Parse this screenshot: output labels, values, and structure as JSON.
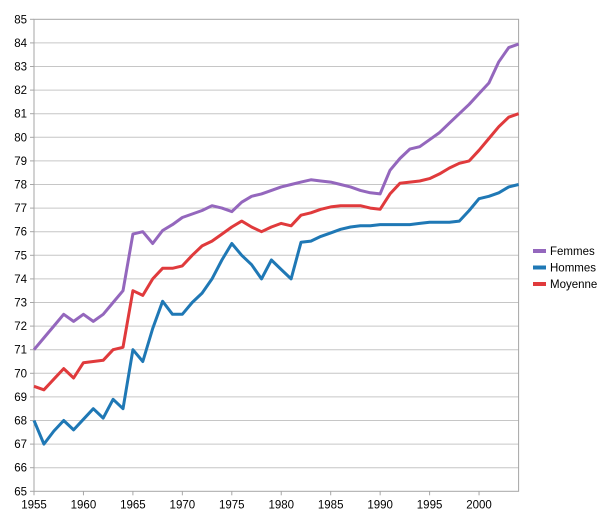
{
  "chart_data": {
    "type": "line",
    "title": "",
    "xlabel": "",
    "ylabel": "",
    "ylim": [
      65,
      85
    ],
    "ytick_step": 1,
    "y_ticks": [
      85,
      84,
      83,
      82,
      81,
      80,
      79,
      78,
      77,
      76,
      75,
      74,
      73,
      72,
      71,
      70,
      69,
      68,
      67,
      66,
      65
    ],
    "x_ticks": [
      1955,
      1960,
      1965,
      1970,
      1975,
      1980,
      1985,
      1990,
      1995,
      2000
    ],
    "x_start": 1955,
    "x_end": 2004,
    "grid": "horizontal",
    "legend_position": "right",
    "x": [
      1955,
      1956,
      1957,
      1958,
      1959,
      1960,
      1961,
      1962,
      1963,
      1964,
      1965,
      1966,
      1967,
      1968,
      1969,
      1970,
      1971,
      1972,
      1973,
      1974,
      1975,
      1976,
      1977,
      1978,
      1979,
      1980,
      1981,
      1982,
      1983,
      1984,
      1985,
      1986,
      1987,
      1988,
      1989,
      1990,
      1991,
      1992,
      1993,
      1994,
      1995,
      1996,
      1997,
      1998,
      1999,
      2000,
      2001,
      2002,
      2003,
      2004
    ],
    "series": [
      {
        "name": "Femmes",
        "color": "#9467BD",
        "values": [
          71.0,
          71.5,
          72.0,
          72.5,
          72.2,
          72.5,
          72.2,
          72.5,
          73.0,
          73.5,
          75.9,
          76.0,
          75.5,
          76.05,
          76.3,
          76.6,
          76.75,
          76.9,
          77.1,
          77.0,
          76.85,
          77.25,
          77.5,
          77.6,
          77.75,
          77.9,
          78.0,
          78.1,
          78.2,
          78.15,
          78.1,
          78.0,
          77.9,
          77.75,
          77.65,
          77.6,
          78.6,
          79.1,
          79.5,
          79.6,
          79.9,
          80.2,
          80.6,
          81.0,
          81.4,
          81.85,
          82.3,
          83.2,
          83.8,
          83.95
        ]
      },
      {
        "name": "Hommes",
        "color": "#1F78B5",
        "values": [
          68.0,
          67.0,
          67.55,
          68.0,
          67.6,
          68.05,
          68.5,
          68.1,
          68.9,
          68.5,
          71.0,
          70.5,
          71.9,
          73.05,
          72.5,
          72.5,
          73.0,
          73.4,
          74.0,
          74.8,
          75.5,
          75.0,
          74.6,
          74.0,
          74.8,
          74.4,
          74.0,
          75.55,
          75.6,
          75.8,
          75.95,
          76.1,
          76.2,
          76.25,
          76.25,
          76.3,
          76.3,
          76.3,
          76.3,
          76.35,
          76.4,
          76.4,
          76.4,
          76.45,
          76.9,
          77.4,
          77.5,
          77.65,
          77.9,
          78.0
        ]
      },
      {
        "name": "Moyenne",
        "color": "#E03A3C",
        "values": [
          69.45,
          69.3,
          69.75,
          70.2,
          69.8,
          70.45,
          70.5,
          70.55,
          71.0,
          71.1,
          73.5,
          73.3,
          74.0,
          74.45,
          74.45,
          74.55,
          75.0,
          75.4,
          75.6,
          75.9,
          76.2,
          76.45,
          76.2,
          76.0,
          76.2,
          76.35,
          76.25,
          76.7,
          76.8,
          76.95,
          77.05,
          77.1,
          77.1,
          77.1,
          77.0,
          76.95,
          77.6,
          78.05,
          78.1,
          78.15,
          78.25,
          78.45,
          78.7,
          78.9,
          79.0,
          79.45,
          79.95,
          80.45,
          80.85,
          81.0
        ]
      }
    ]
  },
  "legend": {
    "items": [
      {
        "label": "Femmes",
        "color": "#9467BD"
      },
      {
        "label": "Hommes",
        "color": "#1F78B5"
      },
      {
        "label": "Moyenne",
        "color": "#E03A3C"
      }
    ]
  },
  "style_colors": {
    "background": "#ffffff",
    "gridline": "#c6c6c6",
    "plot_border": "#a6a6a6",
    "tick": "#a6a6a6",
    "label_text": "#000000"
  }
}
